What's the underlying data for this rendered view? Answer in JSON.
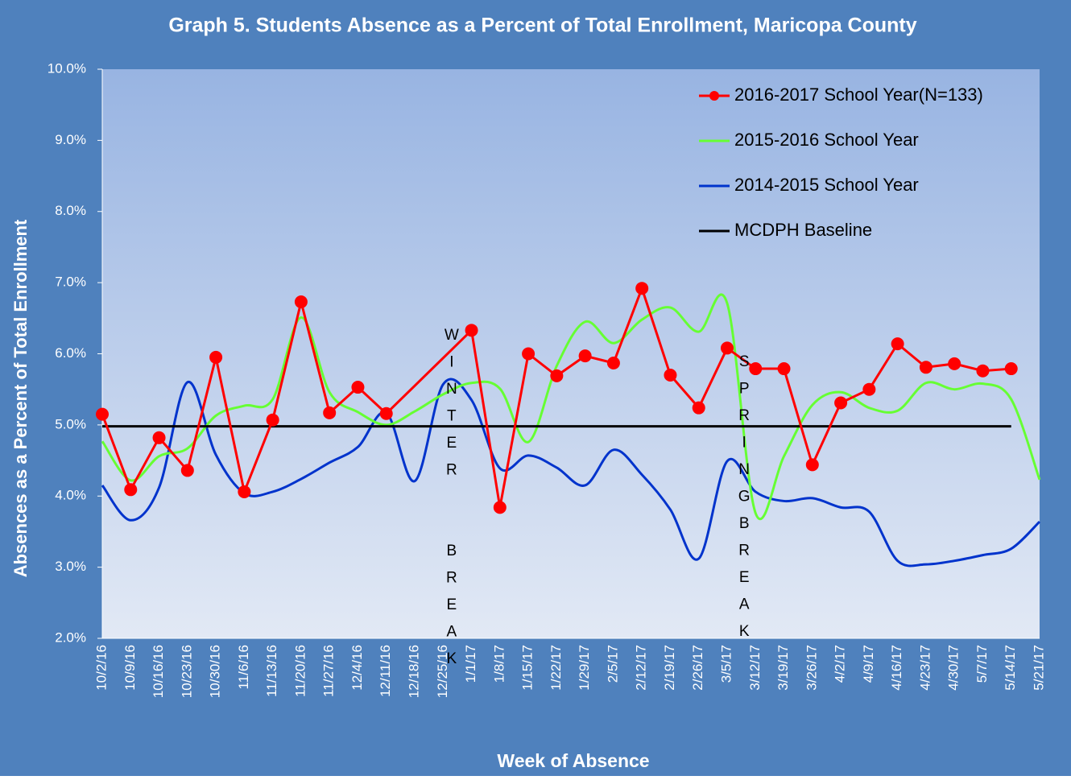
{
  "chart_data": {
    "type": "line",
    "title": "Graph 5. Students Absence as a Percent of Total Enrollment,  Maricopa County",
    "x_label": "Week of Absence",
    "y_label": "Absences as a Percent of Total Enrollment",
    "categories": [
      "10/2/16",
      "10/9/16",
      "10/16/16",
      "10/23/16",
      "10/30/16",
      "11/6/16",
      "11/13/16",
      "11/20/16",
      "11/27/16",
      "12/4/16",
      "12/11/16",
      "12/18/16",
      "12/25/16",
      "1/1/17",
      "1/8/17",
      "1/15/17",
      "1/22/17",
      "1/29/17",
      "2/5/17",
      "2/12/17",
      "2/19/17",
      "2/26/17",
      "3/5/17",
      "3/12/17",
      "3/19/17",
      "3/26/17",
      "4/2/17",
      "4/9/17",
      "4/16/17",
      "4/23/17",
      "4/30/17",
      "5/7/17",
      "5/14/17",
      "5/21/17"
    ],
    "series": [
      {
        "name": "2016-2017 School Year(N=133)",
        "color": "#ff0000",
        "markers": true,
        "smooth": false,
        "connect_gaps": true,
        "values": [
          5.15,
          4.09,
          4.82,
          4.36,
          5.95,
          4.06,
          5.07,
          6.73,
          5.17,
          5.53,
          5.16,
          null,
          null,
          6.33,
          3.84,
          6.0,
          5.69,
          5.97,
          5.87,
          6.92,
          5.7,
          5.24,
          6.08,
          5.79,
          5.79,
          4.44,
          5.31,
          5.5,
          6.14,
          5.81,
          5.86,
          5.76,
          5.79,
          null
        ]
      },
      {
        "name": "2015-2016 School Year",
        "color": "#66ff33",
        "markers": false,
        "smooth": true,
        "values": [
          4.77,
          4.22,
          4.56,
          4.67,
          5.13,
          5.27,
          5.36,
          6.51,
          5.46,
          5.18,
          5.0,
          5.19,
          5.43,
          5.59,
          5.51,
          4.76,
          5.83,
          6.45,
          6.15,
          6.48,
          6.65,
          6.31,
          6.71,
          3.76,
          4.56,
          5.28,
          5.46,
          5.24,
          5.2,
          5.59,
          5.5,
          5.58,
          5.36,
          4.23
        ]
      },
      {
        "name": "2014-2015 School Year",
        "color": "#0033cc",
        "markers": false,
        "smooth": true,
        "values": [
          4.15,
          3.66,
          4.12,
          5.6,
          4.58,
          4.04,
          4.06,
          4.24,
          4.47,
          4.69,
          5.17,
          4.21,
          5.57,
          5.35,
          4.39,
          4.57,
          4.4,
          4.15,
          4.65,
          4.3,
          3.81,
          3.12,
          4.49,
          4.06,
          3.93,
          3.97,
          3.84,
          3.78,
          3.09,
          3.04,
          3.09,
          3.17,
          3.26,
          3.64
        ]
      },
      {
        "name": "MCDPH Baseline",
        "color": "#000000",
        "markers": false,
        "smooth": false,
        "values": [
          4.98,
          4.98,
          4.98,
          4.98,
          4.98,
          4.98,
          4.98,
          4.98,
          4.98,
          4.98,
          4.98,
          4.98,
          4.98,
          4.98,
          4.98,
          4.98,
          4.98,
          4.98,
          4.98,
          4.98,
          4.98,
          4.98,
          4.98,
          4.98,
          4.98,
          4.98,
          4.98,
          4.98,
          4.98,
          4.98,
          4.98,
          4.98,
          4.98,
          null
        ]
      }
    ],
    "annotations": [
      {
        "text": "WINTER  BREAK",
        "category": "12/25/16"
      },
      {
        "text": "SPRINGBREAK",
        "category": "3/5/17"
      }
    ],
    "ylim": [
      2,
      10
    ],
    "yticks": [
      {
        "value": 2,
        "label": "2.0%"
      },
      {
        "value": 3,
        "label": "3.0%"
      },
      {
        "value": 4,
        "label": "4.0%"
      },
      {
        "value": 5,
        "label": "5.0%"
      },
      {
        "value": 6,
        "label": "6.0%"
      },
      {
        "value": 7,
        "label": "7.0%"
      },
      {
        "value": 8,
        "label": "8.0%"
      },
      {
        "value": 9,
        "label": "9.0%"
      },
      {
        "value": 10,
        "label": "10.0%"
      }
    ],
    "legend": "top-right"
  }
}
